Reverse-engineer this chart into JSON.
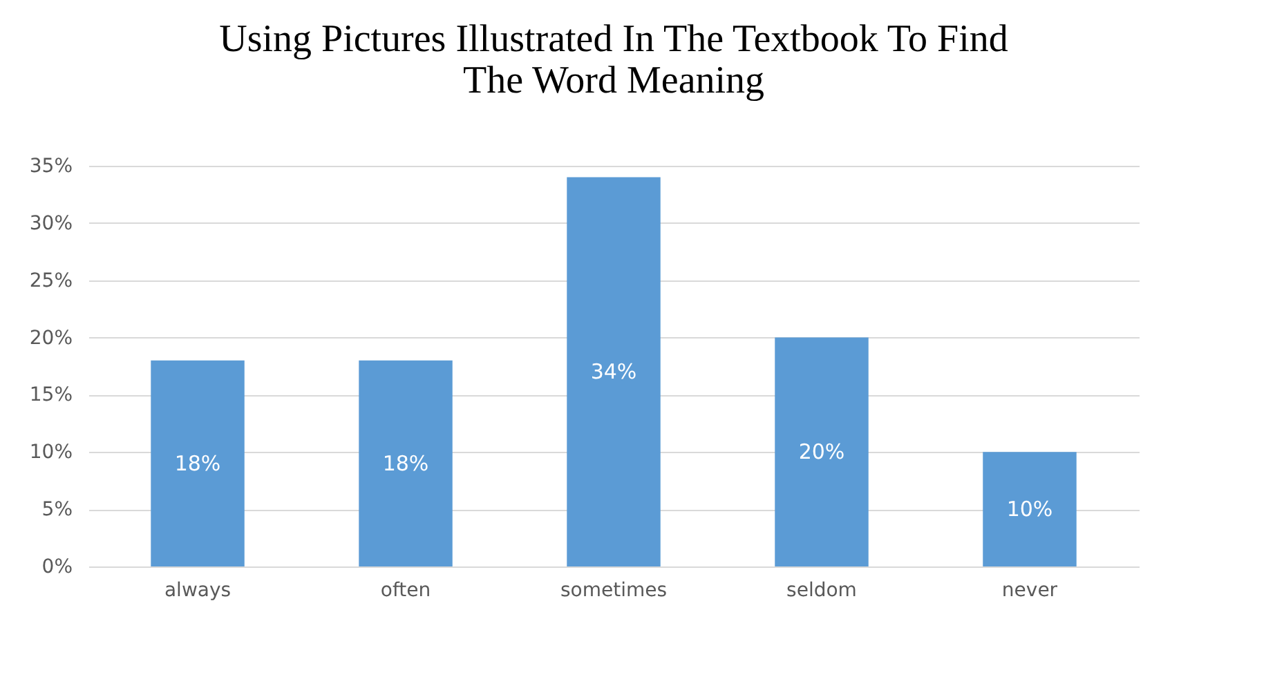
{
  "chart_data": {
    "type": "bar",
    "title": "Using Pictures Illustrated In The Textbook To Find The Word Meaning",
    "categories": [
      "always",
      "often",
      "sometimes",
      "seldom",
      "never"
    ],
    "values": [
      18,
      18,
      34,
      20,
      10
    ],
    "value_labels": [
      "18%",
      "18%",
      "34%",
      "20%",
      "10%"
    ],
    "color": "#5b9bd5",
    "ylim": [
      0,
      35
    ],
    "yticks": [
      {
        "value": 0,
        "label": "0%"
      },
      {
        "value": 5,
        "label": "5%"
      },
      {
        "value": 10,
        "label": "10%"
      },
      {
        "value": 15,
        "label": "15%"
      },
      {
        "value": 20,
        "label": "20%"
      },
      {
        "value": 25,
        "label": "25%"
      },
      {
        "value": 30,
        "label": "30%"
      },
      {
        "value": 35,
        "label": "35%"
      }
    ],
    "grid": "y"
  }
}
